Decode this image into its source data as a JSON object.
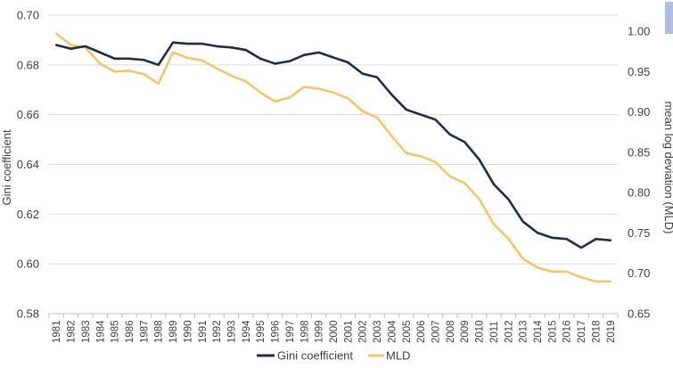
{
  "colors": {
    "gini": "#1c2f45",
    "mld": "#f2c46d",
    "gridline": "#d9d9d9",
    "axis": "#bfbfbf",
    "text": "#404040",
    "corner_tab": "#aebfe3"
  },
  "chart_data": {
    "type": "line",
    "title": "",
    "xlabel": "",
    "ylabel": "Gini coefficient",
    "y2label": "mean log deviation (MLD)",
    "ylim": [
      0.58,
      0.7
    ],
    "y2lim": [
      0.65,
      1.02
    ],
    "yticks": [
      "0.58",
      "0.60",
      "0.62",
      "0.64",
      "0.66",
      "0.68",
      "0.70"
    ],
    "y2ticks": [
      "0.65",
      "0.70",
      "0.75",
      "0.80",
      "0.85",
      "0.90",
      "0.95",
      "1.00"
    ],
    "grid": "horizontal",
    "legend": "bottom",
    "x": [
      "1981",
      "1982",
      "1983",
      "1984",
      "1985",
      "1986",
      "1987",
      "1988",
      "1989",
      "1990",
      "1991",
      "1992",
      "1993",
      "1994",
      "1995",
      "1996",
      "1997",
      "1998",
      "1999",
      "2000",
      "2001",
      "2002",
      "2003",
      "2004",
      "2005",
      "2006",
      "2007",
      "2008",
      "2009",
      "2010",
      "2011",
      "2012",
      "2013",
      "2014",
      "2015",
      "2016",
      "2017",
      "2018",
      "2019"
    ],
    "series": [
      {
        "name": "Gini coefficient",
        "axis": "left",
        "values": [
          0.688,
          0.6865,
          0.6875,
          0.685,
          0.6825,
          0.6825,
          0.682,
          0.68,
          0.689,
          0.6885,
          0.6885,
          0.6875,
          0.687,
          0.686,
          0.6825,
          0.6805,
          0.6815,
          0.684,
          0.685,
          0.683,
          0.681,
          0.6765,
          0.675,
          0.668,
          0.662,
          0.66,
          0.658,
          0.652,
          0.649,
          0.642,
          0.632,
          0.626,
          0.617,
          0.6125,
          0.6105,
          0.61,
          0.6065,
          0.61,
          0.6095
        ]
      },
      {
        "name": "MLD",
        "axis": "right",
        "values": [
          0.997,
          0.983,
          0.98,
          0.96,
          0.95,
          0.951,
          0.947,
          0.935,
          0.974,
          0.967,
          0.964,
          0.954,
          0.945,
          0.938,
          0.924,
          0.913,
          0.918,
          0.931,
          0.929,
          0.924,
          0.917,
          0.901,
          0.893,
          0.87,
          0.849,
          0.845,
          0.838,
          0.82,
          0.812,
          0.792,
          0.761,
          0.743,
          0.718,
          0.707,
          0.702,
          0.702,
          0.695,
          0.69,
          0.69
        ]
      }
    ]
  }
}
